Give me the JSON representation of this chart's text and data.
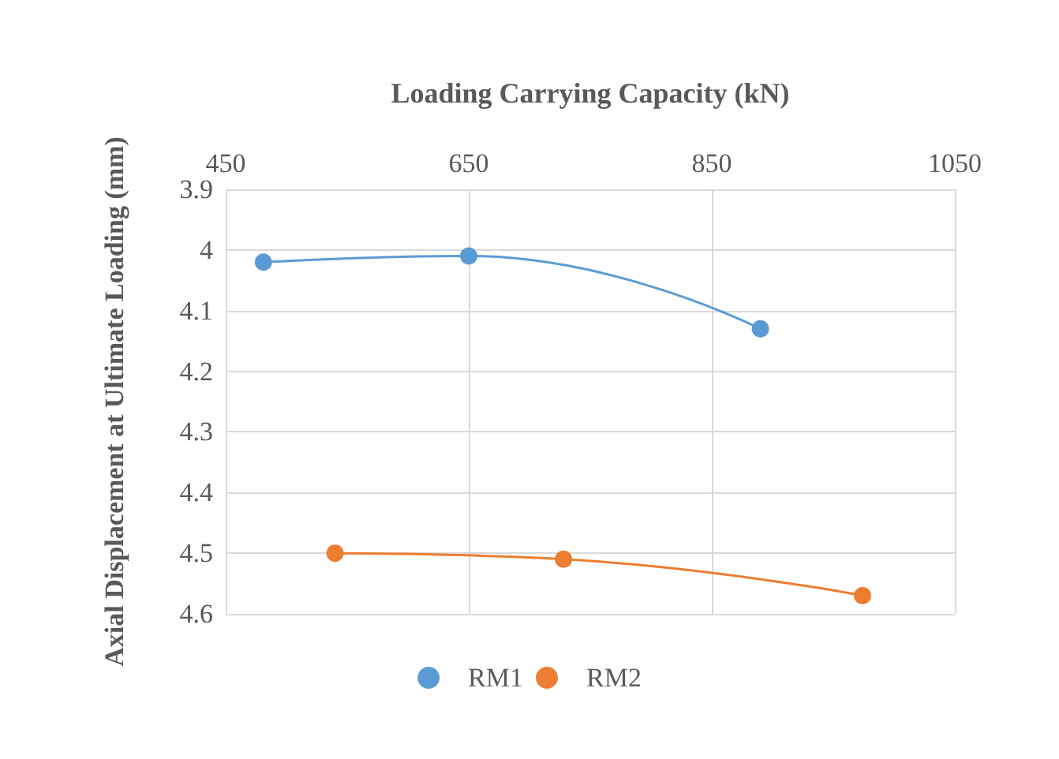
{
  "chart_data": {
    "type": "line",
    "xlabel": "Loading Carrying Capacity (kN)",
    "ylabel": "Axial Displacement at Ultimate Loading (mm)",
    "xlim": [
      450,
      1050
    ],
    "xticks": [
      450,
      650,
      850,
      1050
    ],
    "ylim": [
      4.6,
      3.9
    ],
    "yticks": [
      3.9,
      4,
      4.1,
      4.2,
      4.3,
      4.4,
      4.5,
      4.6
    ],
    "grid": true,
    "legend": "bottom",
    "marker": "circle",
    "series": [
      {
        "name": "RM1",
        "color": "#5b9bd5",
        "x": [
          481,
          650,
          890
        ],
        "values": [
          4.02,
          4.01,
          4.13
        ]
      },
      {
        "name": "RM2",
        "color": "#ed7d31",
        "x": [
          540,
          728,
          974
        ],
        "values": [
          4.5,
          4.51,
          4.57
        ]
      }
    ]
  }
}
